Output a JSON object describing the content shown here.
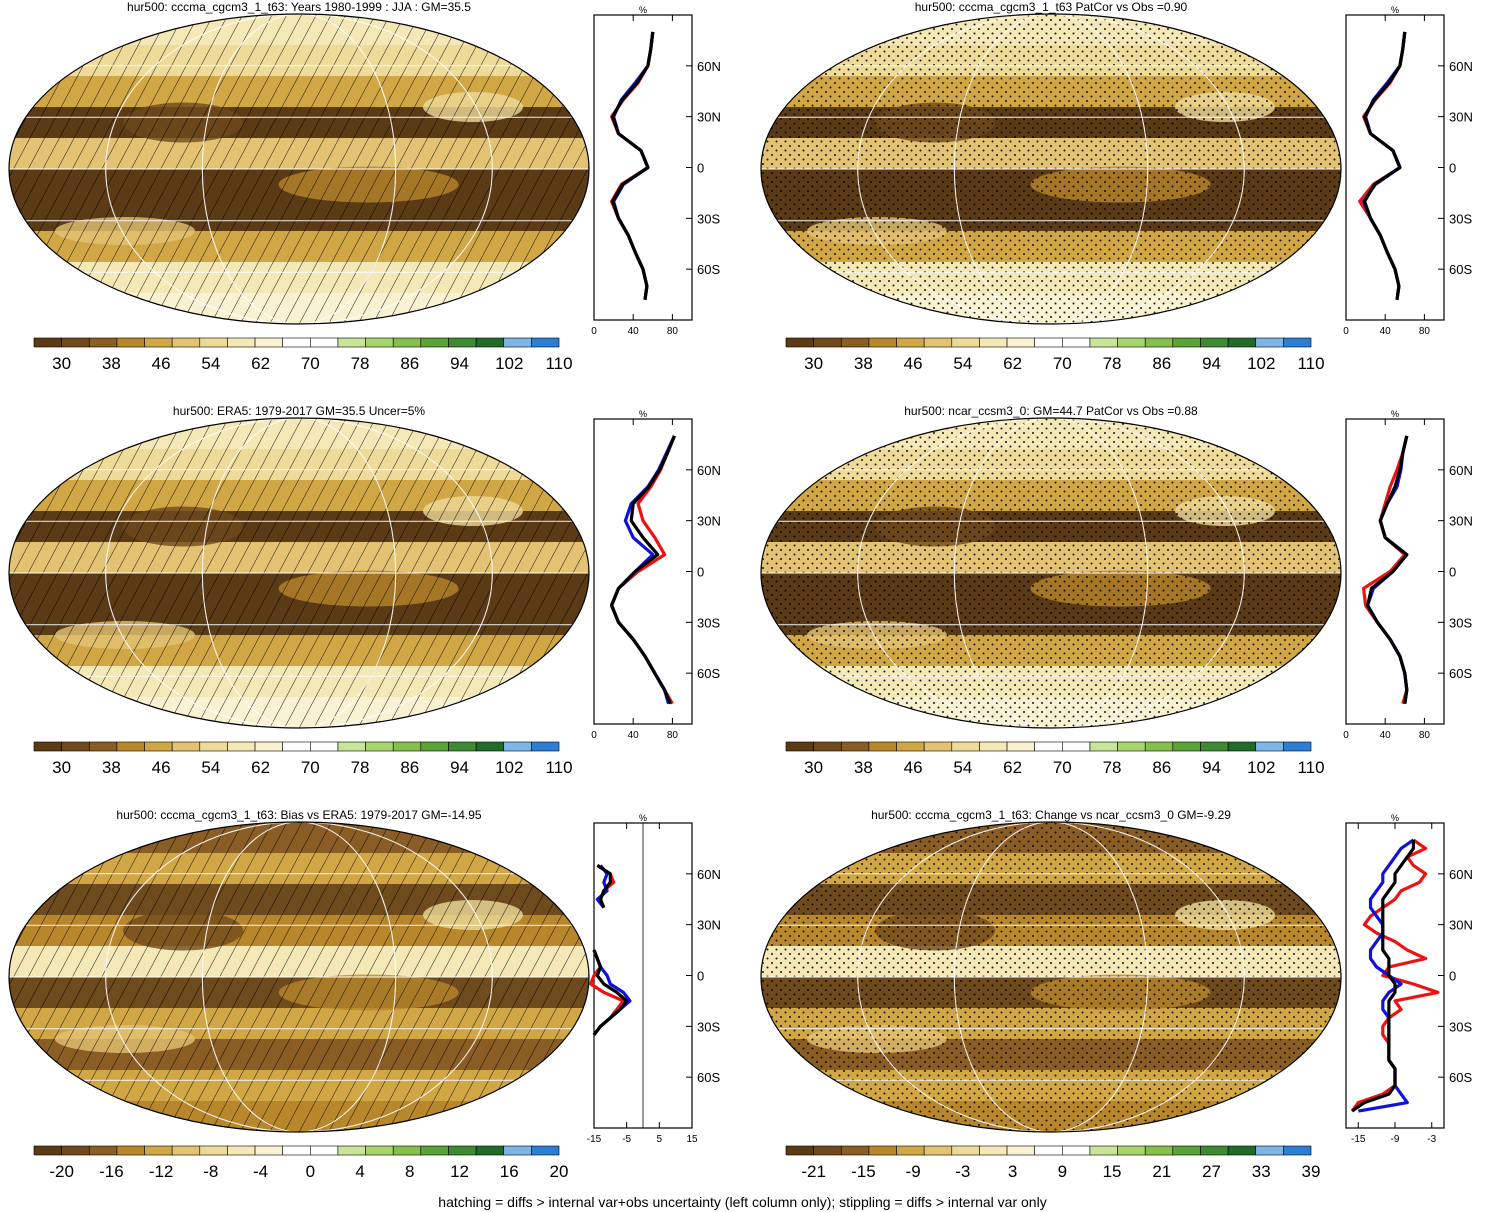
{
  "footer_note": "hatching = diffs > internal var+obs uncertainty (left column only); stippling = diffs > internal var only",
  "lat_ticks": [
    "60N",
    "30N",
    "0",
    "30S",
    "60S"
  ],
  "profile_axis_label": "%",
  "profile_colors": {
    "red": "#ee1111",
    "blue": "#1111dd",
    "black": "#000000"
  },
  "palettes": {
    "abs": [
      "#5b3b16",
      "#6f4a1c",
      "#8a5d25",
      "#b8862b",
      "#d1a746",
      "#e3c373",
      "#eedb9a",
      "#f4e8b6",
      "#f8f1d2",
      "#ffffff",
      "#ffffff",
      "#c9e59b",
      "#a8d46f",
      "#86c04c",
      "#5aa23a",
      "#3d8a33",
      "#216b2a",
      "#7fb6e6",
      "#2d7fd4"
    ],
    "diff": [
      "#5b3b16",
      "#6f4a1c",
      "#8a5d25",
      "#b8862b",
      "#d1a746",
      "#e3c373",
      "#eedb9a",
      "#f4e8b6",
      "#f8f1d2",
      "#ffffff",
      "#ffffff",
      "#c9e59b",
      "#a8d46f",
      "#86c04c",
      "#5aa23a",
      "#3d8a33",
      "#216b2a",
      "#7fb6e6",
      "#2d7fd4"
    ]
  },
  "chart_data": [
    {
      "type": "heatmap",
      "title": "hur500: cccma_cgcm3_1_t63: Years 1980-1999 : JJA : GM=35.5",
      "colorbar_labels": [
        "30",
        "38",
        "46",
        "54",
        "62",
        "70",
        "78",
        "86",
        "94",
        "102",
        "110"
      ],
      "overlay": "hatching",
      "profile": {
        "xlim": [
          0,
          100
        ],
        "x_ticks": [
          "0",
          "40",
          "80"
        ],
        "lat": [
          80,
          70,
          60,
          50,
          40,
          30,
          20,
          10,
          0,
          -10,
          -20,
          -30,
          -40,
          -50,
          -60,
          -70,
          -78
        ],
        "red": [
          60,
          58,
          55,
          45,
          30,
          18,
          25,
          48,
          55,
          28,
          18,
          25,
          35,
          42,
          50,
          54,
          52
        ],
        "blue": [
          60,
          58,
          55,
          42,
          28,
          20,
          25,
          48,
          55,
          30,
          20,
          25,
          35,
          42,
          50,
          54,
          52
        ],
        "black": [
          60,
          58,
          55,
          44,
          29,
          19,
          25,
          48,
          55,
          29,
          19,
          25,
          35,
          42,
          50,
          54,
          52
        ]
      }
    },
    {
      "type": "heatmap",
      "title": "hur500: cccma_cgcm3_1_t63 PatCor vs Obs =0.90",
      "colorbar_labels": [
        "30",
        "38",
        "46",
        "54",
        "62",
        "70",
        "78",
        "86",
        "94",
        "102",
        "110"
      ],
      "overlay": "stippling",
      "profile": {
        "xlim": [
          0,
          100
        ],
        "x_ticks": [
          "0",
          "40",
          "80"
        ],
        "lat": [
          80,
          70,
          60,
          50,
          40,
          30,
          20,
          10,
          0,
          -10,
          -20,
          -30,
          -40,
          -50,
          -60,
          -70,
          -78
        ],
        "red": [
          60,
          58,
          55,
          45,
          30,
          18,
          25,
          48,
          55,
          28,
          14,
          25,
          35,
          42,
          50,
          54,
          52
        ],
        "blue": [
          60,
          58,
          55,
          42,
          28,
          20,
          25,
          48,
          55,
          30,
          18,
          25,
          35,
          42,
          50,
          54,
          52
        ],
        "black": [
          60,
          58,
          55,
          44,
          29,
          19,
          25,
          48,
          55,
          29,
          19,
          25,
          35,
          42,
          50,
          54,
          52
        ]
      }
    },
    {
      "type": "heatmap",
      "title": "hur500: ERA5: 1979-2017 GM=35.5 Uncer=5%",
      "colorbar_labels": [
        "30",
        "38",
        "46",
        "54",
        "62",
        "70",
        "78",
        "86",
        "94",
        "102",
        "110"
      ],
      "overlay": "hatching",
      "profile": {
        "xlim": [
          0,
          100
        ],
        "x_ticks": [
          "0",
          "40",
          "80"
        ],
        "lat": [
          80,
          70,
          60,
          50,
          40,
          30,
          20,
          10,
          0,
          -10,
          -20,
          -30,
          -40,
          -50,
          -60,
          -70,
          -78
        ],
        "red": [
          82,
          75,
          68,
          58,
          45,
          50,
          62,
          72,
          45,
          25,
          18,
          25,
          40,
          52,
          62,
          72,
          80
        ],
        "blue": [
          82,
          74,
          66,
          55,
          38,
          32,
          40,
          60,
          42,
          25,
          18,
          25,
          40,
          52,
          62,
          72,
          76
        ],
        "black": [
          82,
          75,
          67,
          56,
          40,
          38,
          50,
          65,
          42,
          25,
          18,
          25,
          40,
          52,
          62,
          72,
          78
        ]
      }
    },
    {
      "type": "heatmap",
      "title": "hur500: ncar_ccsm3_0: GM=44.7 PatCor vs Obs =0.88",
      "colorbar_labels": [
        "30",
        "38",
        "46",
        "54",
        "62",
        "70",
        "78",
        "86",
        "94",
        "102",
        "110"
      ],
      "overlay": "stippling",
      "profile": {
        "xlim": [
          0,
          100
        ],
        "x_ticks": [
          "0",
          "40",
          "80"
        ],
        "lat": [
          80,
          70,
          60,
          50,
          40,
          30,
          20,
          10,
          0,
          -10,
          -20,
          -30,
          -40,
          -50,
          -60,
          -70,
          -78
        ],
        "red": [
          62,
          58,
          52,
          45,
          40,
          35,
          40,
          60,
          45,
          18,
          20,
          32,
          45,
          55,
          60,
          62,
          58
        ],
        "blue": [
          62,
          58,
          56,
          52,
          42,
          35,
          40,
          62,
          48,
          28,
          22,
          32,
          45,
          55,
          60,
          62,
          60
        ],
        "black": [
          62,
          58,
          55,
          50,
          42,
          35,
          40,
          62,
          48,
          26,
          22,
          32,
          45,
          55,
          60,
          62,
          60
        ]
      }
    },
    {
      "type": "heatmap",
      "title": "hur500: cccma_cgcm3_1_t63: Bias vs ERA5: 1979-2017 GM=-14.95",
      "colorbar_labels": [
        "-20",
        "-16",
        "-12",
        "-8",
        "-4",
        "0",
        "4",
        "8",
        "12",
        "16",
        "20"
      ],
      "overlay": "hatching",
      "profile": {
        "xlim": [
          -15,
          15
        ],
        "x_ticks": [
          "-15",
          "-5",
          "5",
          "15"
        ],
        "lat": [
          65,
          60,
          55,
          50,
          45,
          40,
          null,
          15,
          5,
          0,
          -5,
          -10,
          -15,
          -20,
          -25,
          -30,
          -35
        ],
        "red": [
          -14,
          -10,
          -9,
          -12,
          -13,
          -12,
          null,
          -15,
          -13,
          -15,
          -16,
          -12,
          -6,
          -8,
          -10,
          -13,
          -15
        ],
        "blue": [
          -13,
          -11,
          -12,
          -11,
          -14,
          -12,
          null,
          -15,
          -13,
          -11,
          -10,
          -6,
          -4,
          -7,
          -10,
          -13,
          -15
        ],
        "black": [
          -14,
          -10,
          -10,
          -12,
          -13,
          -12,
          null,
          -15,
          -13,
          -14,
          -12,
          -8,
          -5,
          -7,
          -10,
          -13,
          -15
        ]
      }
    },
    {
      "type": "heatmap",
      "title": "hur500: cccma_cgcm3_1_t63: Change vs ncar_ccsm3_0 GM=-9.29",
      "colorbar_labels": [
        "-21",
        "-15",
        "-9",
        "-3",
        "3",
        "9",
        "15",
        "21",
        "27",
        "33",
        "39"
      ],
      "overlay": "stippling",
      "profile": {
        "xlim": [
          -17,
          -1
        ],
        "x_ticks": [
          "-15",
          "-9",
          "-3"
        ],
        "lat": [
          80,
          75,
          70,
          65,
          60,
          55,
          50,
          45,
          40,
          35,
          30,
          25,
          20,
          15,
          10,
          5,
          0,
          -5,
          -10,
          -15,
          -20,
          -25,
          -30,
          -35,
          -40,
          -45,
          -50,
          -55,
          -60,
          -65,
          -70,
          -75,
          -80
        ],
        "red": [
          -6,
          -4,
          -7,
          -6,
          -4,
          -5,
          -8,
          -9,
          -11,
          -13,
          -14,
          -12,
          -9,
          -7,
          -4,
          -10,
          -11,
          -6,
          -2,
          -9,
          -8,
          -10,
          -11,
          -11,
          -10,
          -10,
          -10,
          -9,
          -9,
          -9,
          -11,
          -15,
          -16
        ],
        "blue": [
          -6,
          -8,
          -9,
          -10,
          -11,
          -11,
          -12,
          -13,
          -13,
          -12,
          -11,
          -11,
          -12,
          -13,
          -13,
          -12,
          -10,
          -8,
          -10,
          -11,
          -11,
          -10,
          -10,
          -10,
          -10,
          -10,
          -10,
          -9,
          -9,
          -9,
          -8,
          -7,
          -15
        ],
        "black": [
          -6,
          -6,
          -7,
          -8,
          -9,
          -9,
          -10,
          -11,
          -11,
          -11,
          -11,
          -11,
          -11,
          -11,
          -10,
          -10,
          -10,
          -9,
          -9,
          -10,
          -10,
          -10,
          -10,
          -10,
          -10,
          -10,
          -10,
          -9,
          -9,
          -9,
          -10,
          -14,
          -16
        ]
      }
    }
  ]
}
